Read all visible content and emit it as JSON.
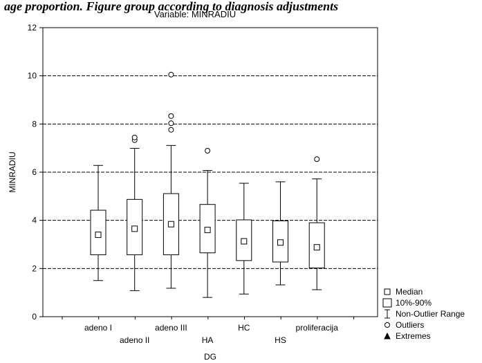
{
  "page_header": "age proportion. Figure group according to diagnosis adjustments",
  "chart_data": {
    "type": "boxplot",
    "title": "Variable: MINRADIU",
    "xlabel": "DG",
    "ylabel": "MINRADIU",
    "ylim": [
      0,
      12
    ],
    "yticks": [
      0,
      2,
      4,
      6,
      8,
      10,
      12
    ],
    "grid": true,
    "legend_position": "bottom-right",
    "categories": [
      "adeno I",
      "adeno II",
      "adeno III",
      "HA",
      "HC",
      "HS",
      "proliferacija"
    ],
    "boxes": [
      {
        "category": "adeno I",
        "median": 3.4,
        "q10": 2.57,
        "q90": 4.42,
        "whisker_low": 1.5,
        "whisker_high": 6.28,
        "outliers": []
      },
      {
        "category": "adeno II",
        "median": 3.65,
        "q10": 2.57,
        "q90": 4.87,
        "whisker_low": 1.08,
        "whisker_high": 6.99,
        "outliers": [
          7.33,
          7.44
        ]
      },
      {
        "category": "adeno III",
        "median": 3.84,
        "q10": 2.57,
        "q90": 5.11,
        "whisker_low": 1.18,
        "whisker_high": 7.11,
        "outliers": [
          7.76,
          8.03,
          8.33,
          10.05
        ]
      },
      {
        "category": "HA",
        "median": 3.6,
        "q10": 2.65,
        "q90": 4.66,
        "whisker_low": 0.8,
        "whisker_high": 6.07,
        "outliers": [
          6.89
        ]
      },
      {
        "category": "HC",
        "median": 3.13,
        "q10": 2.33,
        "q90": 4.02,
        "whisker_low": 0.94,
        "whisker_high": 5.54,
        "outliers": []
      },
      {
        "category": "HS",
        "median": 3.08,
        "q10": 2.27,
        "q90": 3.98,
        "whisker_low": 1.32,
        "whisker_high": 5.6,
        "outliers": []
      },
      {
        "category": "proliferacija",
        "median": 2.88,
        "q10": 2.02,
        "q90": 3.9,
        "whisker_low": 1.12,
        "whisker_high": 5.72,
        "outliers": [
          6.54
        ]
      }
    ],
    "legend": [
      {
        "symbol": "small-square",
        "label": "Median"
      },
      {
        "symbol": "box",
        "label": "10%-90%"
      },
      {
        "symbol": "whisker",
        "label": "Non-Outlier Range"
      },
      {
        "symbol": "circle",
        "label": "Outliers"
      },
      {
        "symbol": "triangle",
        "label": "Extremes"
      }
    ]
  }
}
